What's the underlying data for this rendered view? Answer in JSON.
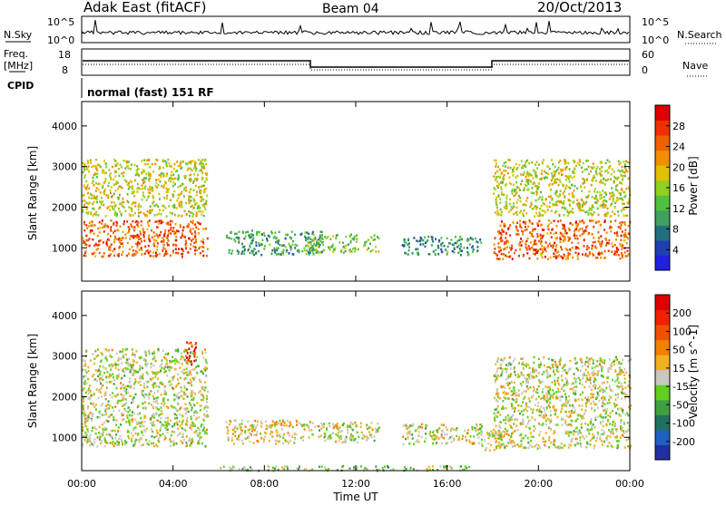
{
  "header": {
    "station": "Adak East (fitACF)",
    "beam": "Beam 04",
    "date": "20/Oct/2013"
  },
  "nsky_panel": {
    "left_label": "N.Sky",
    "right_label": "N.Search",
    "ticks_left": [
      "10^5",
      "10^0"
    ],
    "ticks_right": [
      "10^5",
      "10^0"
    ]
  },
  "freq_panel": {
    "left_label_1": "Freq.",
    "left_label_2": "[MHz]",
    "right_label": "Nave",
    "ticks_left": [
      "18",
      "8"
    ],
    "ticks_right": [
      "60",
      "0"
    ],
    "cpid_label": "CPID",
    "cpid_text": "normal (fast) 151 RF"
  },
  "colors": {
    "power": [
      "#2020e0",
      "#2040b0",
      "#207080",
      "#40a060",
      "#50c040",
      "#90d020",
      "#e0c000",
      "#f09000",
      "#f06000",
      "#f03000",
      "#e00000"
    ],
    "velocity": [
      "#2030a0",
      "#2060c0",
      "#207060",
      "#40a040",
      "#60d020",
      "#c8c8c0",
      "#f0b020",
      "#f08000",
      "#f05000",
      "#f02000",
      "#e00000"
    ]
  },
  "chart_data": [
    {
      "type": "heatmap",
      "title": "",
      "xlabel": "",
      "ylabel": "Slant Range [km]",
      "colorbar_label": "Power [dB]",
      "colorbar_ticks": [
        "28",
        "24",
        "20",
        "16",
        "12",
        "8",
        "4"
      ],
      "x_tick_labels": [
        "00:00",
        "04:00",
        "08:00",
        "12:00",
        "16:00",
        "20:00",
        "00:00"
      ],
      "y_tick_labels": [
        "4000",
        "3000",
        "2000",
        "1000"
      ],
      "xlim": [
        0,
        24
      ],
      "ylim": [
        180,
        4600
      ],
      "clim": [
        0,
        32
      ],
      "x_unit": "hours UT",
      "echo_regions": [
        {
          "t0": 0.0,
          "t1": 5.5,
          "r0": 800,
          "r1": 1700,
          "value": 26
        },
        {
          "t0": 0.0,
          "t1": 5.5,
          "r0": 1800,
          "r1": 3200,
          "value": 18
        },
        {
          "t0": 6.3,
          "t1": 10.5,
          "r0": 850,
          "r1": 1450,
          "value": 10
        },
        {
          "t0": 9.8,
          "t1": 13.0,
          "r0": 900,
          "r1": 1350,
          "value": 14
        },
        {
          "t0": 14.0,
          "t1": 17.5,
          "r0": 850,
          "r1": 1300,
          "value": 9
        },
        {
          "t0": 18.0,
          "t1": 24.0,
          "r0": 750,
          "r1": 1700,
          "value": 26
        },
        {
          "t0": 18.0,
          "t1": 24.0,
          "r0": 1800,
          "r1": 3200,
          "value": 18
        }
      ]
    },
    {
      "type": "heatmap",
      "title": "",
      "xlabel": "Time UT",
      "ylabel": "Slant Range [km]",
      "colorbar_label": "Velocity [m s^-1]",
      "colorbar_ticks": [
        "200",
        "100",
        "50",
        "15",
        "-15",
        "-50",
        "-100",
        "-200"
      ],
      "x_tick_labels": [
        "00:00",
        "04:00",
        "08:00",
        "12:00",
        "16:00",
        "20:00",
        "00:00"
      ],
      "y_tick_labels": [
        "4000",
        "3000",
        "2000",
        "1000"
      ],
      "xlim": [
        0,
        24
      ],
      "ylim": [
        180,
        4600
      ],
      "clim": [
        -250,
        250
      ],
      "x_unit": "hours UT",
      "echo_regions": [
        {
          "t0": 0.0,
          "t1": 5.5,
          "r0": 800,
          "r1": 3200,
          "value": 0
        },
        {
          "t0": 4.5,
          "t1": 5.0,
          "r0": 2800,
          "r1": 3400,
          "value": 180
        },
        {
          "t0": 6.3,
          "t1": 9.5,
          "r0": 850,
          "r1": 1450,
          "value": 30
        },
        {
          "t0": 9.5,
          "t1": 13.0,
          "r0": 900,
          "r1": 1400,
          "value": 0
        },
        {
          "t0": 14.0,
          "t1": 17.5,
          "r0": 850,
          "r1": 1350,
          "value": 0
        },
        {
          "t0": 17.5,
          "t1": 18.5,
          "r0": 700,
          "r1": 1200,
          "value": 30
        },
        {
          "t0": 18.0,
          "t1": 24.0,
          "r0": 750,
          "r1": 3000,
          "value": 0
        },
        {
          "t0": 6.0,
          "t1": 17.0,
          "r0": 200,
          "r1": 320,
          "value": -40
        }
      ]
    }
  ]
}
